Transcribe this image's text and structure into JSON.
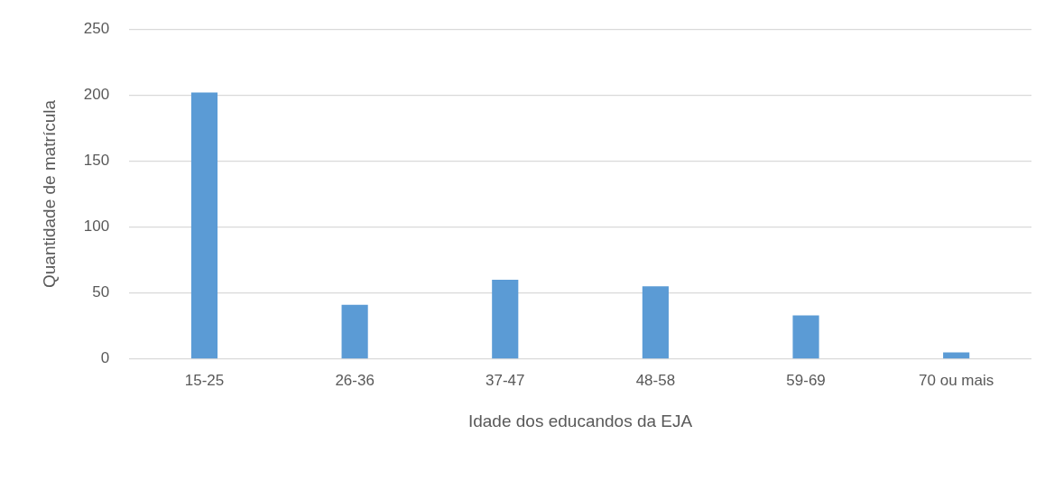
{
  "chart_data": {
    "type": "bar",
    "xlabel": "Idade dos educandos da EJA",
    "ylabel": "Quantidade de matrícula",
    "categories": [
      "15-25",
      "26-36",
      "37-47",
      "48-58",
      "59-69",
      "70 ou mais"
    ],
    "values": [
      202,
      41,
      60,
      55,
      33,
      5
    ],
    "color": "#5b9bd5",
    "ylim": [
      0,
      250
    ],
    "yticks": [
      0,
      50,
      100,
      150,
      200,
      250
    ],
    "grid": "y",
    "legend": false
  }
}
